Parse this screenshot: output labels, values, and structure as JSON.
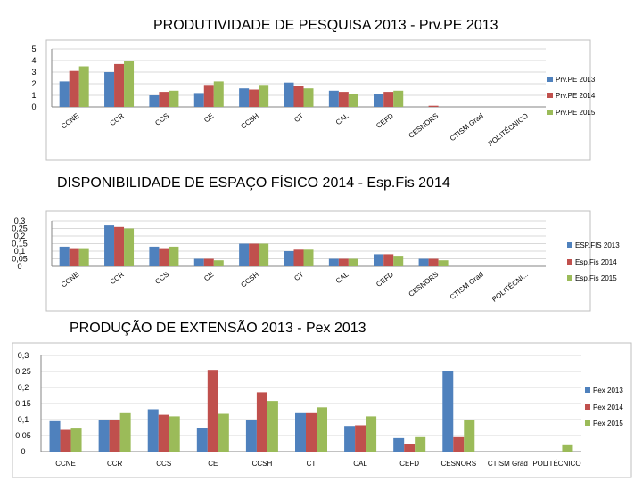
{
  "colors": {
    "s2013": "#4f81bd",
    "s2014": "#c0504d",
    "s2015": "#9bbb59",
    "axis": "#868686",
    "frame": "#bfbfbf"
  },
  "chart_data": [
    {
      "type": "bar",
      "title": "PRODUTIVIDADE DE PESQUISA 2013 - Prv.PE 2013",
      "categories": [
        "CCNE",
        "CCR",
        "CCS",
        "CE",
        "CCSH",
        "CT",
        "CAL",
        "CEFD",
        "CESNORS",
        "CTISM Grad",
        "POLITÉCNICO"
      ],
      "series": [
        {
          "name": "Prv.PE 2013",
          "values": [
            2.2,
            3.0,
            1.0,
            1.2,
            1.6,
            2.1,
            1.4,
            1.1,
            0,
            0,
            0
          ]
        },
        {
          "name": "Prv.PE 2014",
          "values": [
            3.1,
            3.7,
            1.3,
            1.9,
            1.5,
            1.8,
            1.3,
            1.3,
            0.1,
            0,
            0
          ]
        },
        {
          "name": "Prv.PE 2015",
          "values": [
            3.5,
            4.0,
            1.4,
            2.2,
            1.9,
            1.6,
            1.1,
            1.4,
            0,
            0,
            0
          ]
        }
      ],
      "yticks": [
        "0",
        "1",
        "2",
        "3",
        "4",
        "5"
      ],
      "ylim": [
        0,
        5
      ],
      "legend": "right"
    },
    {
      "type": "bar",
      "title": "DISPONIBILIDADE DE ESPAÇO FÍSICO 2014 - Esp.Fis 2014",
      "categories": [
        "CCNE",
        "CCR",
        "CCS",
        "CE",
        "CCSH",
        "CT",
        "CAL",
        "CEFD",
        "CESNORS",
        "CTISM Grad",
        "POLITÉCNI..."
      ],
      "series": [
        {
          "name": "ESP.FIS 2013",
          "values": [
            0.13,
            0.27,
            0.13,
            0.05,
            0.15,
            0.1,
            0.05,
            0.08,
            0.05,
            0,
            0
          ]
        },
        {
          "name": "Esp.Fis 2014",
          "values": [
            0.12,
            0.26,
            0.12,
            0.05,
            0.15,
            0.11,
            0.05,
            0.08,
            0.05,
            0,
            0
          ]
        },
        {
          "name": "Esp.Fis 2015",
          "values": [
            0.12,
            0.25,
            0.13,
            0.04,
            0.15,
            0.11,
            0.05,
            0.07,
            0.04,
            0,
            0
          ]
        }
      ],
      "yticks": [
        "0",
        "0,05",
        "0,1",
        "0,15",
        "0,2",
        "0,25",
        "0,3"
      ],
      "ylim": [
        0,
        0.3
      ],
      "legend": "right"
    },
    {
      "type": "bar",
      "title": "PRODUÇÃO DE EXTENSÃO 2013 - Pex 2013",
      "categories": [
        "CCNE",
        "CCR",
        "CCS",
        "CE",
        "CCSH",
        "CT",
        "CAL",
        "CEFD",
        "CESNORS",
        "CTISM Grad",
        "POLITÉCNICO"
      ],
      "series": [
        {
          "name": "Pex 2013",
          "values": [
            0.095,
            0.1,
            0.132,
            0.075,
            0.1,
            0.12,
            0.08,
            0.042,
            0.25,
            0,
            0
          ]
        },
        {
          "name": "Pex 2014",
          "values": [
            0.068,
            0.1,
            0.115,
            0.255,
            0.185,
            0.12,
            0.082,
            0.025,
            0.045,
            0,
            0
          ]
        },
        {
          "name": "Pex 2015",
          "values": [
            0.072,
            0.12,
            0.11,
            0.118,
            0.158,
            0.138,
            0.11,
            0.045,
            0.1,
            0,
            0.02
          ]
        }
      ],
      "yticks": [
        "0",
        "0,05",
        "0,1",
        "0,15",
        "0,2",
        "0,25",
        "0,3"
      ],
      "ylim": [
        0,
        0.3
      ],
      "legend": "right"
    }
  ]
}
